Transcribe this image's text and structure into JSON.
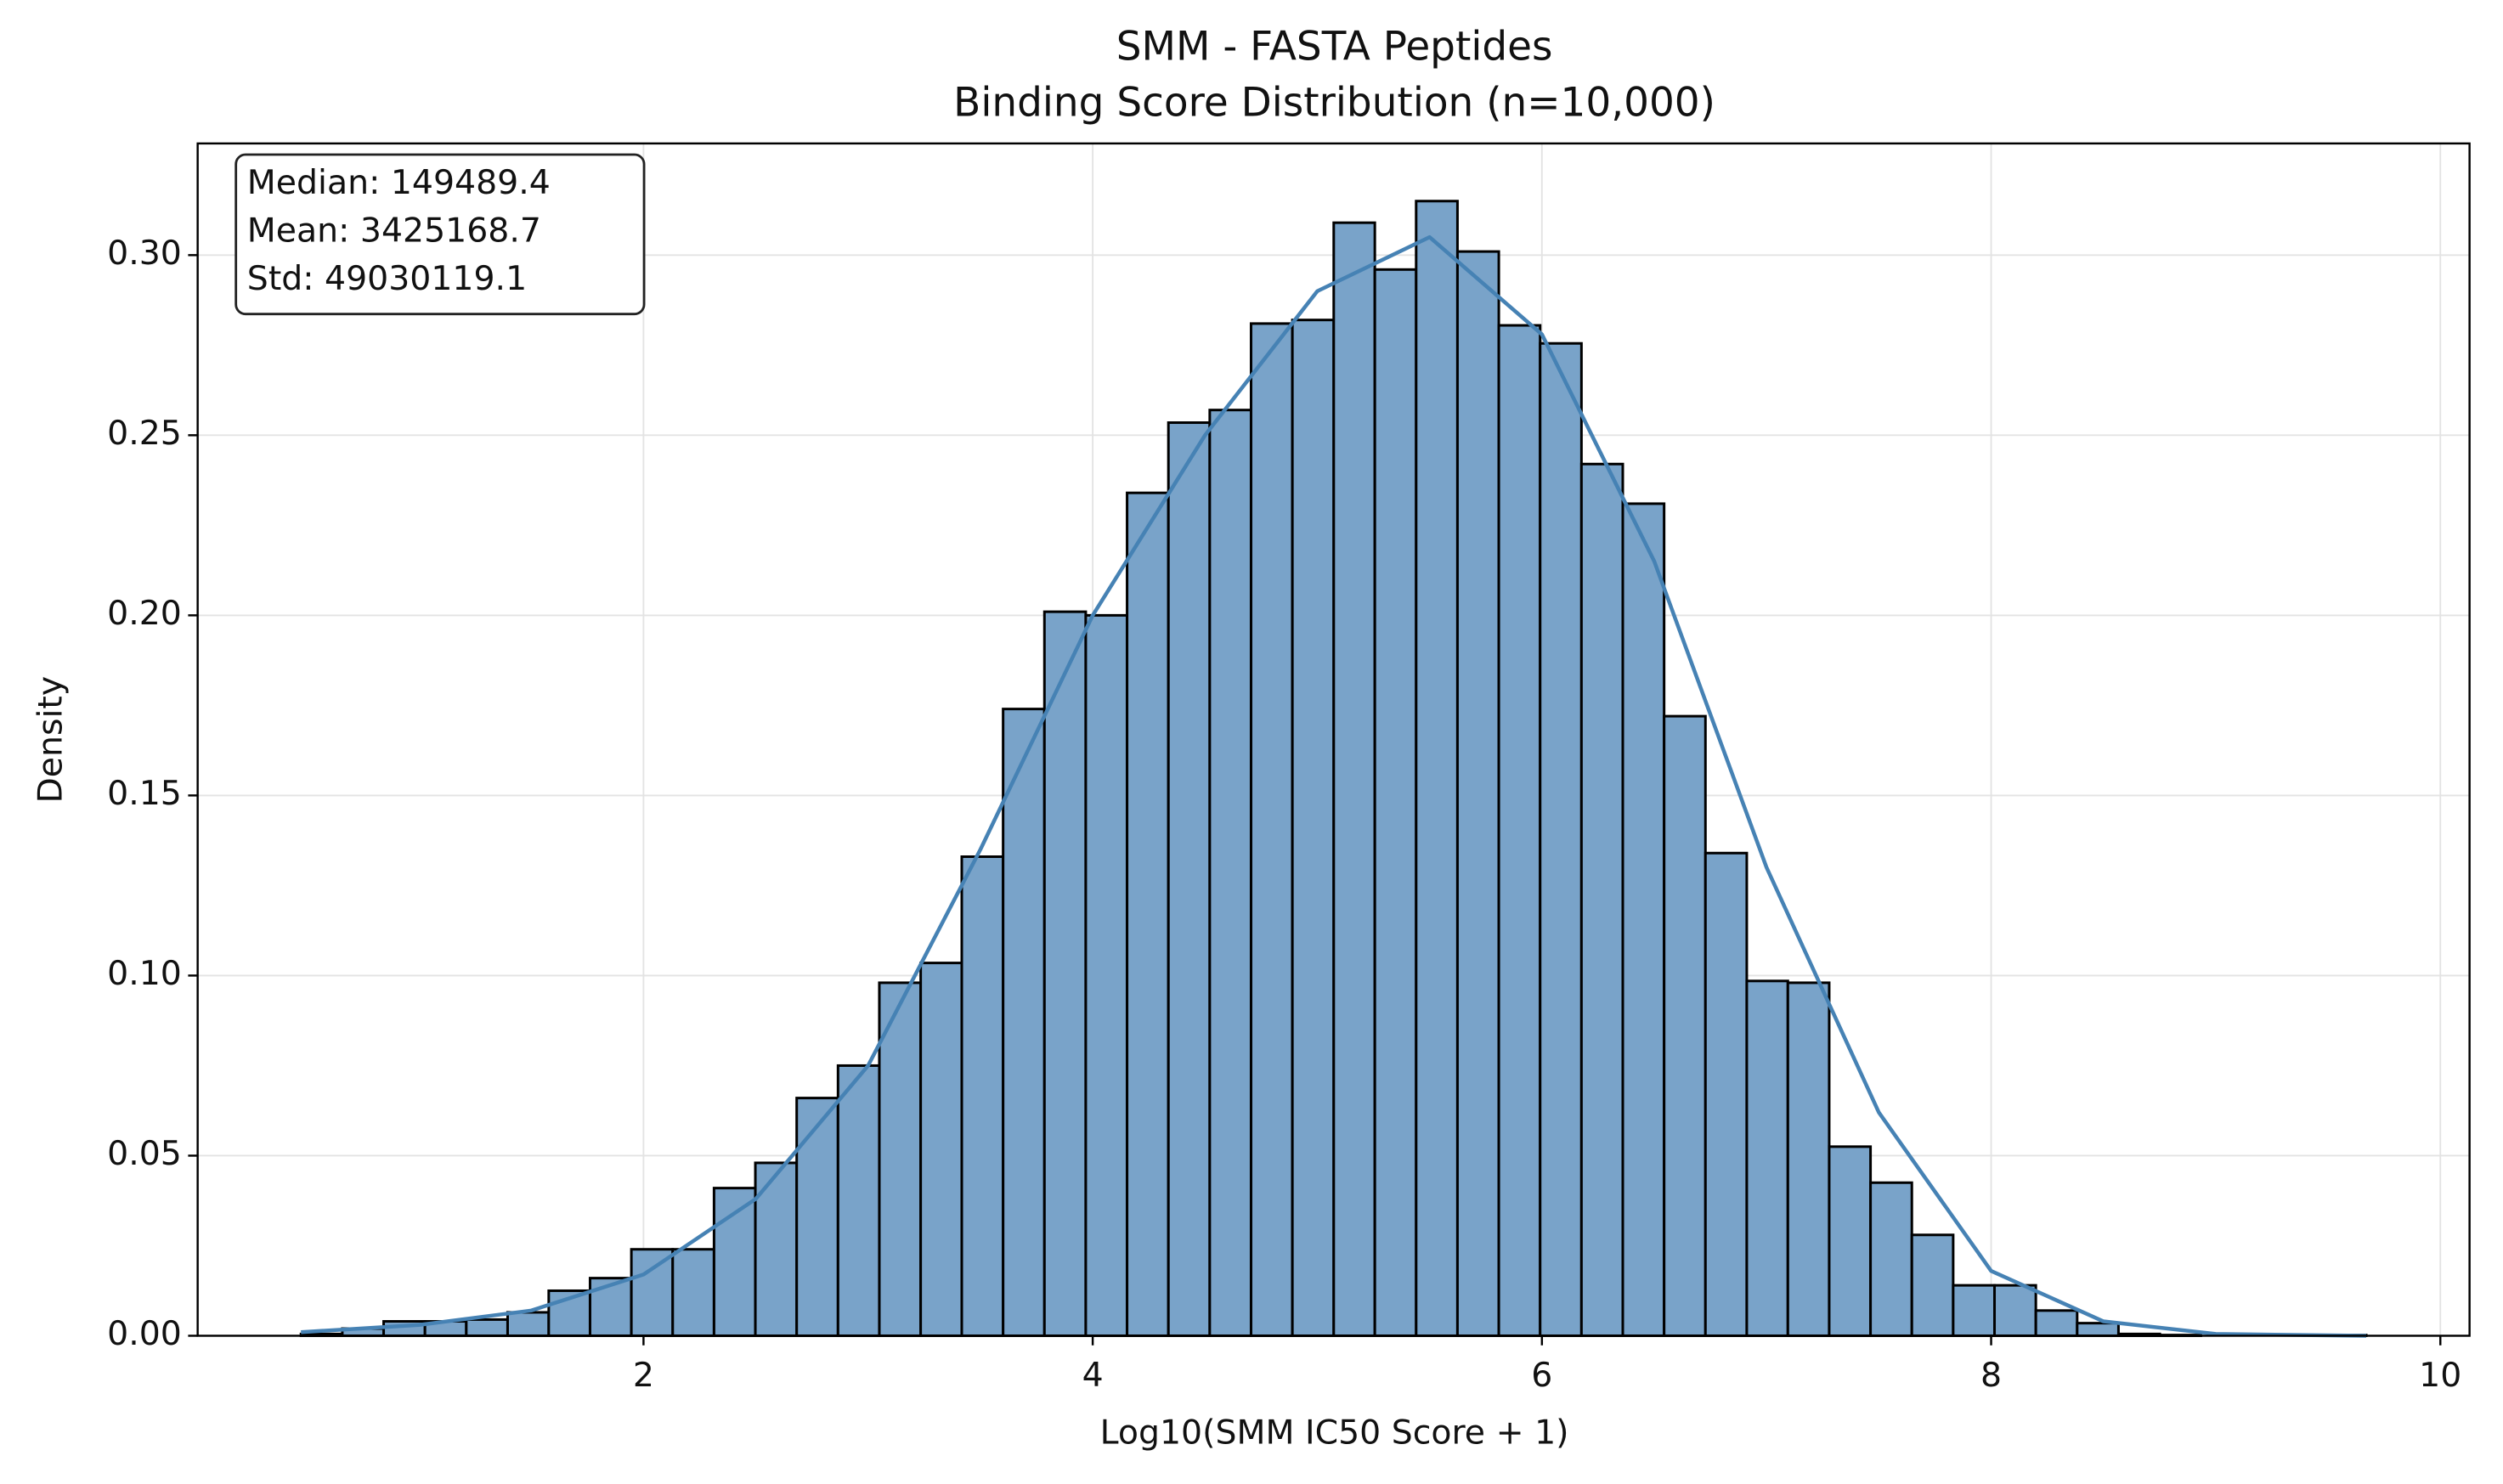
{
  "chart_data": {
    "type": "histogram",
    "title": [
      "SMM - FASTA Peptides",
      "Binding Score Distribution (n=10,000)"
    ],
    "xlabel": "Log10(SMM IC50 Score + 1)",
    "ylabel": "Density",
    "stats": [
      "Median: 149489.4",
      "Mean: 3425168.7",
      "Std: 49030119.1"
    ],
    "bins": [
      0.475,
      0.659,
      0.843,
      1.027,
      1.211,
      1.395,
      1.578,
      1.762,
      1.946,
      2.13,
      2.314,
      2.498,
      2.682,
      2.866,
      3.05,
      3.234,
      3.417,
      3.601,
      3.785,
      3.969,
      4.153,
      4.337,
      4.521,
      4.705,
      4.889,
      5.073,
      5.256,
      5.44,
      5.624,
      5.808,
      5.992,
      6.176,
      6.36,
      6.544,
      6.728,
      6.912,
      7.095,
      7.279,
      7.463,
      7.647,
      7.831,
      8.015,
      8.199,
      8.383,
      8.567,
      8.751,
      8.934,
      9.118,
      9.302,
      9.486,
      9.67
    ],
    "values": [
      0.0005,
      0.002,
      0.004,
      0.004,
      0.0045,
      0.0065,
      0.0125,
      0.016,
      0.024,
      0.024,
      0.041,
      0.048,
      0.066,
      0.075,
      0.098,
      0.1035,
      0.133,
      0.174,
      0.201,
      0.2,
      0.234,
      0.2535,
      0.257,
      0.281,
      0.282,
      0.309,
      0.296,
      0.315,
      0.301,
      0.2805,
      0.2755,
      0.242,
      0.231,
      0.172,
      0.134,
      0.0985,
      0.098,
      0.0525,
      0.0425,
      0.028,
      0.014,
      0.014,
      0.007,
      0.0035,
      0.0005,
      0.0002,
      0,
      0,
      0,
      0.0002
    ],
    "color": "#79a3c9",
    "edgecolor": "#000000",
    "kde": {
      "color": "#4682b4",
      "x": [
        0.475,
        1,
        1.5,
        2,
        2.5,
        3,
        3.5,
        4,
        4.5,
        5,
        5.5,
        6,
        6.5,
        7,
        7.5,
        8,
        8.5,
        9,
        9.67
      ],
      "values": [
        0.001,
        0.003,
        0.007,
        0.017,
        0.038,
        0.075,
        0.135,
        0.2,
        0.25,
        0.29,
        0.305,
        0.278,
        0.215,
        0.13,
        0.062,
        0.018,
        0.004,
        0.0005,
        0
      ]
    },
    "xlim": [
      0.015,
      10.13
    ],
    "ylim": [
      0,
      0.331
    ],
    "xticks": [
      2,
      4,
      6,
      8,
      10
    ],
    "yticks": [
      {
        "value": 0,
        "label": "0.00"
      },
      {
        "value": 0.05,
        "label": "0.05"
      },
      {
        "value": 0.1,
        "label": "0.10"
      },
      {
        "value": 0.15,
        "label": "0.15"
      },
      {
        "value": 0.2,
        "label": "0.20"
      },
      {
        "value": 0.25,
        "label": "0.25"
      },
      {
        "value": 0.3,
        "label": "0.30"
      }
    ],
    "grid": true
  }
}
